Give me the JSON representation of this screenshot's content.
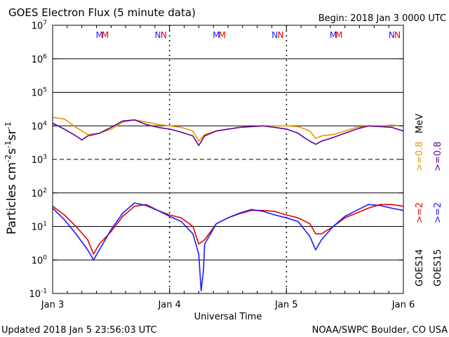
{
  "chart_data": {
    "type": "line",
    "title": "GOES Electron Flux (5 minute data)",
    "begin_label": "Begin: 2018 Jan 3 0000 UTC",
    "xlabel": "Universal Time",
    "ylabel_main": "Particles cm",
    "ylabel_exp1": "-2",
    "ylabel_mid1": "s",
    "ylabel_exp2": "-1",
    "ylabel_mid2": "sr",
    "ylabel_exp3": "-1",
    "footer_left": "Updated 2018 Jan  5 23:56:03 UTC",
    "footer_right": "NOAA/SWPC Boulder, CO USA",
    "y_log_scale": true,
    "ylim": [
      0.1,
      10000000
    ],
    "y_tick_base": "10",
    "y_tick_exponents": [
      "7",
      "6",
      "5",
      "4",
      "3",
      "2",
      "1",
      "0",
      "-1"
    ],
    "x_tick_labels": [
      "Jan 3",
      "Jan 4",
      "Jan 5",
      "Jan 6"
    ],
    "xlim_days": [
      3,
      6
    ],
    "mn_markers": [
      {
        "label": "M",
        "day": 3.4,
        "color": "#1a1aff"
      },
      {
        "label": "M",
        "day": 3.45,
        "color": "#e60000"
      },
      {
        "label": "N",
        "day": 3.9,
        "color": "#1a1aff"
      },
      {
        "label": "N",
        "day": 3.95,
        "color": "#e60000"
      },
      {
        "label": "M",
        "day": 4.4,
        "color": "#1a1aff"
      },
      {
        "label": "M",
        "day": 4.45,
        "color": "#e60000"
      },
      {
        "label": "N",
        "day": 4.9,
        "color": "#1a1aff"
      },
      {
        "label": "N",
        "day": 4.95,
        "color": "#e60000"
      },
      {
        "label": "M",
        "day": 5.4,
        "color": "#1a1aff"
      },
      {
        "label": "M",
        "day": 5.45,
        "color": "#e60000"
      },
      {
        "label": "N",
        "day": 5.9,
        "color": "#1a1aff"
      },
      {
        "label": "N",
        "day": 5.95,
        "color": "#e60000"
      }
    ],
    "legend": {
      "goes14_label": "GOES14",
      "goes15_label": "GOES15",
      "ge2_label": ">=2",
      "ge08_label": ">=0.8",
      "mev_label": "MeV"
    },
    "series": [
      {
        "name": ">=0.8 MeV GOES14",
        "color": "#e69500",
        "x": [
          3.0,
          3.1,
          3.2,
          3.3,
          3.4,
          3.5,
          3.6,
          3.7,
          3.8,
          3.9,
          4.0,
          4.1,
          4.2,
          4.25,
          4.3,
          4.4,
          4.5,
          4.6,
          4.7,
          4.8,
          4.9,
          5.0,
          5.1,
          5.2,
          5.25,
          5.3,
          5.4,
          5.5,
          5.6,
          5.7,
          5.8,
          5.9,
          6.0
        ],
        "y": [
          18000,
          16000,
          9000,
          5500,
          6000,
          8000,
          13000,
          15000,
          13000,
          11000,
          10000,
          9000,
          7000,
          3500,
          5500,
          7000,
          8000,
          9000,
          9500,
          10000,
          10000,
          10000,
          9500,
          7000,
          4200,
          5000,
          5500,
          7000,
          9000,
          10000,
          10000,
          10500,
          10000
        ]
      },
      {
        "name": ">=0.8 MeV GOES15",
        "color": "#660099",
        "x": [
          3.0,
          3.1,
          3.2,
          3.25,
          3.3,
          3.4,
          3.5,
          3.6,
          3.7,
          3.8,
          3.9,
          4.0,
          4.1,
          4.2,
          4.25,
          4.3,
          4.4,
          4.5,
          4.6,
          4.7,
          4.8,
          4.9,
          5.0,
          5.1,
          5.15,
          5.2,
          5.25,
          5.3,
          5.4,
          5.5,
          5.6,
          5.7,
          5.8,
          5.9,
          6.0
        ],
        "y": [
          12000,
          8000,
          5000,
          3800,
          5000,
          6000,
          9000,
          14000,
          15000,
          11000,
          9000,
          8000,
          6500,
          5000,
          2600,
          5000,
          7000,
          8000,
          9000,
          9500,
          10000,
          9000,
          8000,
          6000,
          4500,
          3500,
          2800,
          3500,
          4500,
          6000,
          8000,
          10000,
          9500,
          9000,
          7000
        ]
      },
      {
        "name": ">=2 MeV GOES14",
        "color": "#e60000",
        "x": [
          3.0,
          3.1,
          3.2,
          3.3,
          3.35,
          3.4,
          3.5,
          3.6,
          3.7,
          3.8,
          3.9,
          4.0,
          4.1,
          4.2,
          4.25,
          4.3,
          4.4,
          4.5,
          4.6,
          4.7,
          4.8,
          4.9,
          5.0,
          5.1,
          5.2,
          5.25,
          5.3,
          5.4,
          5.5,
          5.6,
          5.7,
          5.8,
          5.9,
          6.0
        ],
        "y": [
          40,
          22,
          10,
          4,
          1.5,
          3,
          7,
          20,
          40,
          45,
          30,
          22,
          18,
          10,
          3,
          4,
          12,
          18,
          24,
          30,
          30,
          28,
          22,
          18,
          12,
          6,
          6,
          10,
          18,
          25,
          35,
          45,
          45,
          40
        ]
      },
      {
        "name": ">=2 MeV GOES15",
        "color": "#1a1aff",
        "x": [
          3.0,
          3.1,
          3.2,
          3.3,
          3.35,
          3.4,
          3.5,
          3.6,
          3.7,
          3.8,
          3.9,
          4.0,
          4.1,
          4.2,
          4.25,
          4.27,
          4.29,
          4.3,
          4.4,
          4.5,
          4.6,
          4.7,
          4.8,
          4.9,
          5.0,
          5.1,
          5.2,
          5.25,
          5.3,
          5.4,
          5.5,
          5.6,
          5.7,
          5.8,
          5.9,
          6.0
        ],
        "y": [
          35,
          16,
          6,
          2,
          1,
          2,
          8,
          25,
          50,
          42,
          30,
          20,
          14,
          6,
          1.5,
          0.12,
          0.5,
          3,
          12,
          18,
          25,
          32,
          28,
          22,
          18,
          14,
          5,
          2,
          4,
          10,
          20,
          30,
          45,
          42,
          35,
          30
        ]
      }
    ]
  }
}
